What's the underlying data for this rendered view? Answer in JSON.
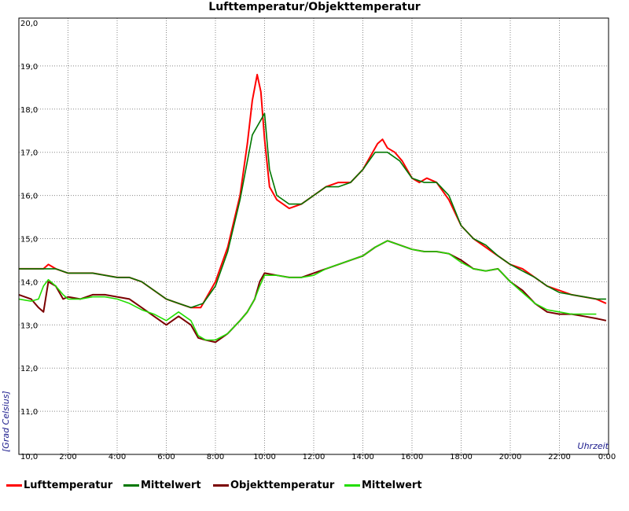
{
  "chart_data": {
    "type": "line",
    "title": "Lufttemperatur/Objekttemperatur",
    "xlabel": "Uhrzeit",
    "ylabel": "[Grad Celsius]",
    "ylim": [
      10.0,
      20.0
    ],
    "yticks": [
      "20,0",
      "19,0",
      "18,0",
      "17,0",
      "16,0",
      "15,0",
      "14,0",
      "13,0",
      "12,0",
      "11,0",
      "10,0"
    ],
    "xlim": [
      0,
      24
    ],
    "xticks": [
      "2:00",
      "4:00",
      "6:00",
      "8:00",
      "10:00",
      "12:00",
      "14:00",
      "16:00",
      "18:00",
      "20:00",
      "22:00",
      "0:00"
    ],
    "grid": true,
    "legend_position": "bottom",
    "x_unit": "hours",
    "series": [
      {
        "name": "Lufttemperatur",
        "color": "#ff0000",
        "x": [
          0,
          0.5,
          1,
          1.2,
          1.5,
          2,
          3,
          4,
          4.5,
          5,
          5.5,
          6,
          6.5,
          7,
          7.4,
          7.6,
          8,
          8.5,
          9,
          9.3,
          9.5,
          9.7,
          9.85,
          10,
          10.2,
          10.5,
          11,
          11.5,
          12,
          12.5,
          13,
          13.5,
          14,
          14.3,
          14.6,
          14.8,
          15,
          15.3,
          15.6,
          16,
          16.3,
          16.6,
          17,
          17.5,
          18,
          18.5,
          19,
          19.5,
          20,
          20.5,
          21,
          21.5,
          22,
          22.5,
          23,
          23.5,
          23.9
        ],
        "y": [
          14.3,
          14.3,
          14.3,
          14.4,
          14.3,
          14.2,
          14.2,
          14.1,
          14.1,
          14.0,
          13.8,
          13.6,
          13.5,
          13.4,
          13.4,
          13.6,
          14.0,
          14.8,
          16.0,
          17.2,
          18.2,
          18.8,
          18.4,
          17.3,
          16.2,
          15.9,
          15.7,
          15.8,
          16.0,
          16.2,
          16.3,
          16.3,
          16.6,
          16.9,
          17.2,
          17.3,
          17.1,
          17.0,
          16.8,
          16.4,
          16.3,
          16.4,
          16.3,
          15.9,
          15.3,
          15.0,
          14.8,
          14.6,
          14.4,
          14.3,
          14.1,
          13.9,
          13.8,
          13.7,
          13.65,
          13.6,
          13.5
        ]
      },
      {
        "name": "Mittelwert",
        "color": "#007700",
        "x": [
          0,
          0.5,
          1,
          1.5,
          2,
          3,
          4,
          4.5,
          5,
          5.5,
          6,
          6.5,
          7,
          7.5,
          8,
          8.5,
          9,
          9.5,
          10,
          10.2,
          10.5,
          11,
          11.5,
          12,
          12.5,
          13,
          13.5,
          14,
          14.5,
          15,
          15.5,
          16,
          16.5,
          17,
          17.5,
          18,
          18.5,
          19,
          19.5,
          20,
          20.5,
          21,
          21.5,
          22,
          22.5,
          23,
          23.5,
          23.9
        ],
        "y": [
          14.3,
          14.3,
          14.3,
          14.3,
          14.2,
          14.2,
          14.1,
          14.1,
          14.0,
          13.8,
          13.6,
          13.5,
          13.4,
          13.5,
          13.9,
          14.7,
          15.9,
          17.4,
          17.9,
          16.6,
          16.0,
          15.8,
          15.8,
          16.0,
          16.2,
          16.2,
          16.3,
          16.6,
          17.0,
          17.0,
          16.8,
          16.4,
          16.3,
          16.3,
          16.0,
          15.3,
          15.0,
          14.85,
          14.6,
          14.4,
          14.25,
          14.1,
          13.9,
          13.75,
          13.7,
          13.65,
          13.6,
          13.6
        ]
      },
      {
        "name": "Objekttemperatur",
        "color": "#7a0000",
        "x": [
          0,
          0.5,
          0.8,
          1,
          1.2,
          1.5,
          1.8,
          2,
          2.5,
          3,
          3.5,
          4,
          4.5,
          5,
          5.5,
          6,
          6.5,
          7,
          7.3,
          7.6,
          8,
          8.5,
          9,
          9.3,
          9.6,
          9.8,
          10,
          10.5,
          11,
          11.5,
          12,
          12.5,
          13,
          13.5,
          14,
          14.5,
          15,
          15.5,
          16,
          16.5,
          17,
          17.5,
          18,
          18.5,
          19,
          19.5,
          20,
          20.5,
          21,
          21.5,
          22,
          22.5,
          23,
          23.5,
          23.9
        ],
        "y": [
          13.7,
          13.6,
          13.4,
          13.3,
          14.0,
          13.9,
          13.6,
          13.65,
          13.6,
          13.7,
          13.7,
          13.65,
          13.6,
          13.4,
          13.2,
          13.0,
          13.2,
          13.0,
          12.7,
          12.65,
          12.6,
          12.8,
          13.1,
          13.3,
          13.6,
          14.0,
          14.2,
          14.15,
          14.1,
          14.1,
          14.2,
          14.3,
          14.4,
          14.5,
          14.6,
          14.8,
          14.95,
          14.85,
          14.75,
          14.7,
          14.7,
          14.65,
          14.5,
          14.3,
          14.25,
          14.3,
          14.0,
          13.8,
          13.5,
          13.3,
          13.25,
          13.25,
          13.2,
          13.15,
          13.1
        ]
      },
      {
        "name": "Mittelwert",
        "color": "#22dd00",
        "x": [
          0,
          0.5,
          0.8,
          1,
          1.2,
          1.5,
          1.8,
          2,
          2.5,
          3,
          3.5,
          4,
          4.5,
          5,
          5.5,
          6,
          6.5,
          7,
          7.3,
          7.6,
          8,
          8.5,
          9,
          9.3,
          9.6,
          9.8,
          10,
          10.5,
          11,
          11.5,
          12,
          12.5,
          13,
          13.5,
          14,
          14.5,
          15,
          15.5,
          16,
          16.5,
          17,
          17.5,
          18,
          18.5,
          19,
          19.5,
          20,
          20.5,
          21,
          21.5,
          22,
          22.5,
          23,
          23.5
        ],
        "y": [
          13.6,
          13.55,
          13.6,
          13.9,
          14.05,
          13.9,
          13.7,
          13.6,
          13.6,
          13.65,
          13.65,
          13.6,
          13.5,
          13.35,
          13.25,
          13.1,
          13.3,
          13.1,
          12.75,
          12.65,
          12.65,
          12.8,
          13.1,
          13.3,
          13.6,
          13.9,
          14.15,
          14.15,
          14.1,
          14.1,
          14.15,
          14.3,
          14.4,
          14.5,
          14.6,
          14.8,
          14.95,
          14.85,
          14.75,
          14.7,
          14.7,
          14.65,
          14.45,
          14.3,
          14.25,
          14.3,
          14.0,
          13.75,
          13.5,
          13.35,
          13.3,
          13.25,
          13.25,
          13.25
        ]
      }
    ]
  }
}
